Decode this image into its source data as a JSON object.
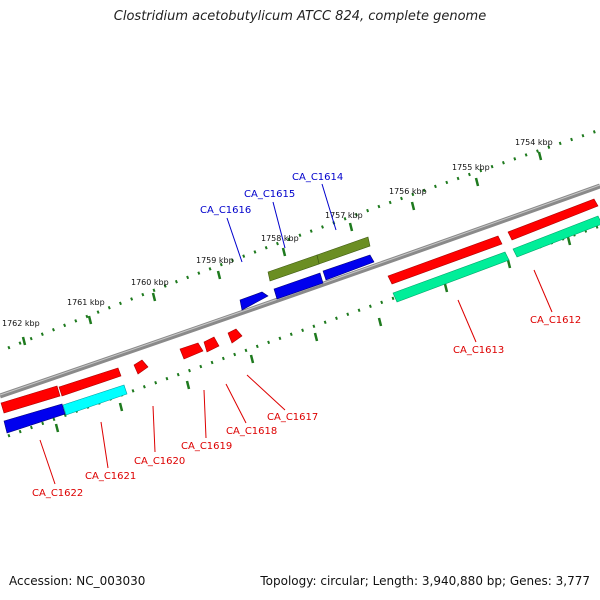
{
  "title": "Clostridium acetobutylicum ATCC 824, complete genome",
  "footer": {
    "accession": "Accession: NC_003030",
    "topology": "Topology: circular; Length: 3,940,880 bp; Genes: 3,777"
  },
  "colors": {
    "backbone": "#8a8a8a",
    "tick": "#1e7a1e",
    "red": "#ff0000",
    "blue": "#0000ee",
    "cyan": "#00ffff",
    "olive": "#6b8e23",
    "teal": "#00ee99",
    "label_red": "#dd0000",
    "label_blue": "#0000cc"
  },
  "kbp_labels": [
    "1754 kbp",
    "1755 kbp",
    "1756 kbp",
    "1757 kbp",
    "1758 kbp",
    "1759 kbp",
    "1760 kbp",
    "1761 kbp",
    "1762 kbp"
  ],
  "gene_labels": {
    "CA_C1612": "CA_C1612",
    "CA_C1613": "CA_C1613",
    "CA_C1614": "CA_C1614",
    "CA_C1615": "CA_C1615",
    "CA_C1616": "CA_C1616",
    "CA_C1617": "CA_C1617",
    "CA_C1618": "CA_C1618",
    "CA_C1619": "CA_C1619",
    "CA_C1620": "CA_C1620",
    "CA_C1621": "CA_C1621",
    "CA_C1622": "CA_C1622"
  }
}
